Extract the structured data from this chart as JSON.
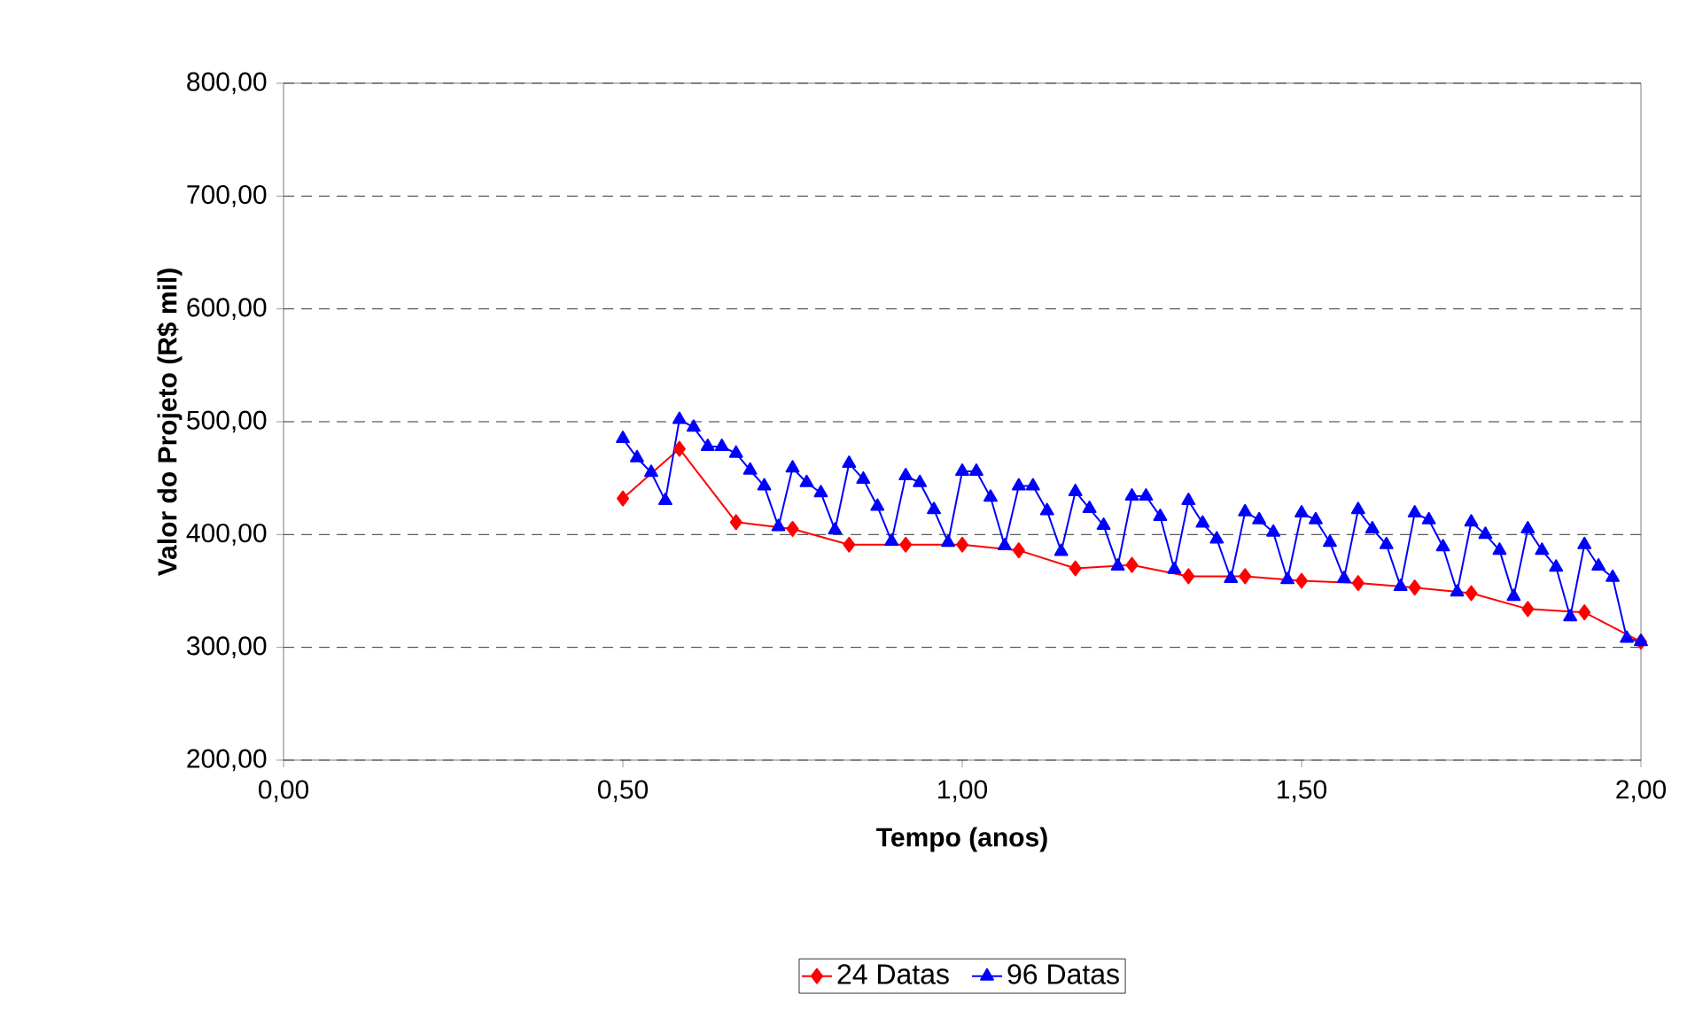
{
  "chart_data": {
    "type": "line",
    "xlabel": "Tempo (anos)",
    "ylabel": "Valor do Projeto (R$ mil)",
    "xlim": [
      0,
      2
    ],
    "ylim": [
      200,
      800
    ],
    "xticks": [
      {
        "value": 0,
        "label": "0,00"
      },
      {
        "value": 0.5,
        "label": "0,50"
      },
      {
        "value": 1,
        "label": "1,00"
      },
      {
        "value": 1.5,
        "label": "1,50"
      },
      {
        "value": 2,
        "label": "2,00"
      }
    ],
    "yticks": [
      {
        "value": 200,
        "label": "200,00"
      },
      {
        "value": 300,
        "label": "300,00"
      },
      {
        "value": 400,
        "label": "400,00"
      },
      {
        "value": 500,
        "label": "500,00"
      },
      {
        "value": 600,
        "label": "600,00"
      },
      {
        "value": 700,
        "label": "700,00"
      },
      {
        "value": 800,
        "label": "800,00"
      }
    ],
    "grid": "y",
    "legend": "bottom",
    "line_style": "solid",
    "series": [
      {
        "name": "24 Datas",
        "color": "#ff0000",
        "marker": "diamond",
        "x": [
          0.5,
          0.5833,
          0.6667,
          0.75,
          0.8333,
          0.9167,
          1.0,
          1.0833,
          1.1667,
          1.25,
          1.3333,
          1.4167,
          1.5,
          1.5833,
          1.6667,
          1.75,
          1.8333,
          1.9167,
          2.0
        ],
        "values": [
          432,
          476,
          411,
          405,
          391,
          391,
          391,
          386,
          370,
          373,
          363,
          363,
          359,
          357,
          353,
          348,
          334,
          331,
          305
        ]
      },
      {
        "name": "96 Datas",
        "color": "#0000ff",
        "marker": "triangle",
        "x": [
          0.5,
          0.5208,
          0.5417,
          0.5625,
          0.5833,
          0.6042,
          0.625,
          0.6458,
          0.6667,
          0.6875,
          0.7083,
          0.7292,
          0.75,
          0.7708,
          0.7917,
          0.8125,
          0.8333,
          0.8542,
          0.875,
          0.8958,
          0.9167,
          0.9375,
          0.9583,
          0.9792,
          1.0,
          1.0208,
          1.0417,
          1.0625,
          1.0833,
          1.1042,
          1.125,
          1.1458,
          1.1667,
          1.1875,
          1.2083,
          1.2292,
          1.25,
          1.2708,
          1.2917,
          1.3125,
          1.3333,
          1.3542,
          1.375,
          1.3958,
          1.4167,
          1.4375,
          1.4583,
          1.4792,
          1.5,
          1.5208,
          1.5417,
          1.5625,
          1.5833,
          1.6042,
          1.625,
          1.6458,
          1.6667,
          1.6875,
          1.7083,
          1.7292,
          1.75,
          1.7708,
          1.7917,
          1.8125,
          1.8333,
          1.8542,
          1.875,
          1.8958,
          1.9167,
          1.9375,
          1.9583,
          1.9792,
          2.0
        ],
        "values": [
          485,
          468,
          455,
          430,
          502,
          495,
          478,
          478,
          472,
          457,
          443,
          407,
          459,
          446,
          437,
          404,
          463,
          449,
          425,
          394,
          452,
          446,
          422,
          393,
          456,
          456,
          433,
          390,
          443,
          443,
          421,
          385,
          438,
          423,
          408,
          372,
          434,
          434,
          416,
          369,
          430,
          410,
          396,
          361,
          420,
          413,
          402,
          360,
          419,
          413,
          393,
          361,
          422,
          405,
          391,
          354,
          419,
          413,
          389,
          349,
          411,
          400,
          386,
          345,
          405,
          386,
          371,
          327,
          391,
          372,
          362,
          308,
          305
        ]
      }
    ]
  }
}
